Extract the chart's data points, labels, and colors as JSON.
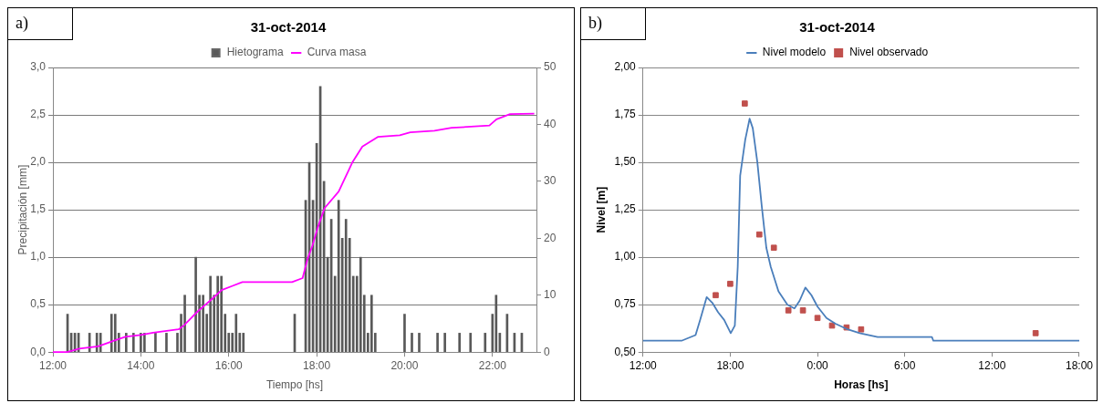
{
  "chart_data": [
    {
      "type": "bar",
      "title": "31-oct-2014",
      "xlabel": "Tiempo [hs]",
      "ylabel": "Precipitación [mm]",
      "annotations": [
        "a)"
      ],
      "legend": "top",
      "grid": "y",
      "xlim": [
        12,
        23
      ],
      "xticks": [
        {
          "value": 12,
          "label": "12:00"
        },
        {
          "value": 14,
          "label": "14:00"
        },
        {
          "value": 16,
          "label": "16:00"
        },
        {
          "value": 18,
          "label": "18:00"
        },
        {
          "value": 20,
          "label": "20:00"
        },
        {
          "value": 22,
          "label": "22:00"
        }
      ],
      "ylim": [
        0,
        3
      ],
      "yticks": [
        {
          "value": 0,
          "label": "0,0"
        },
        {
          "value": 0.5,
          "label": "0,5"
        },
        {
          "value": 1,
          "label": "1,0"
        },
        {
          "value": 1.5,
          "label": "1,5"
        },
        {
          "value": 2,
          "label": "2,0"
        },
        {
          "value": 2.5,
          "label": "2,5"
        },
        {
          "value": 3,
          "label": "3,0"
        }
      ],
      "y2lim": [
        0,
        50
      ],
      "y2ticks": [
        0,
        10,
        20,
        30,
        40,
        50
      ],
      "series": [
        {
          "name": "Hietograma",
          "color": "#595959",
          "x": [
            12.333,
            12.417,
            12.5,
            12.583,
            12.833,
            13.0,
            13.083,
            13.333,
            13.417,
            13.5,
            13.667,
            13.833,
            14.0,
            14.083,
            14.333,
            14.583,
            14.833,
            14.917,
            15.0,
            15.25,
            15.333,
            15.417,
            15.5,
            15.583,
            15.667,
            15.75,
            15.833,
            15.917,
            16.0,
            16.083,
            16.167,
            16.25,
            16.333,
            17.5,
            17.75,
            17.833,
            17.917,
            18.0,
            18.083,
            18.167,
            18.25,
            18.333,
            18.417,
            18.5,
            18.583,
            18.667,
            18.75,
            18.833,
            18.917,
            19.0,
            19.083,
            19.167,
            19.25,
            19.333,
            20.0,
            20.167,
            20.333,
            20.75,
            20.917,
            21.25,
            21.5,
            21.833,
            22.0,
            22.083,
            22.167,
            22.333,
            22.5,
            22.667
          ],
          "values": [
            0.4,
            0.2,
            0.2,
            0.2,
            0.2,
            0.2,
            0.2,
            0.4,
            0.4,
            0.2,
            0.2,
            0.2,
            0.2,
            0.2,
            0.2,
            0.2,
            0.2,
            0.4,
            0.6,
            1.0,
            0.6,
            0.6,
            0.4,
            0.8,
            0.6,
            0.8,
            0.8,
            0.4,
            0.2,
            0.2,
            0.4,
            0.2,
            0.2,
            0.4,
            1.6,
            2.0,
            1.6,
            2.2,
            2.8,
            1.8,
            1.0,
            1.4,
            0.8,
            1.6,
            1.2,
            1.4,
            1.2,
            0.8,
            0.8,
            1.0,
            0.6,
            0.2,
            0.6,
            0.2,
            0.4,
            0.2,
            0.2,
            0.2,
            0.2,
            0.2,
            0.2,
            0.2,
            0.4,
            0.6,
            0.2,
            0.4,
            0.2,
            0.2
          ]
        },
        {
          "name": "Curva masa",
          "type": "line",
          "axis": "y2",
          "color": "#ff00ff",
          "x": [
            12,
            12.33,
            12.6,
            13.03,
            13.42,
            13.65,
            14.0,
            14.28,
            14.86,
            14.98,
            15.3,
            15.6,
            15.84,
            16.31,
            17.44,
            17.68,
            17.79,
            17.9,
            18.03,
            18.18,
            18.5,
            18.81,
            19.04,
            19.39,
            19.89,
            20.13,
            20.68,
            21.07,
            21.93,
            22.09,
            22.4,
            22.95
          ],
          "values": [
            0,
            0,
            0.6,
            1.0,
            2.1,
            2.7,
            3.0,
            3.4,
            4.0,
            4.7,
            7.2,
            9.2,
            10.9,
            12.3,
            12.3,
            13.0,
            16.3,
            18.6,
            22.0,
            25.3,
            28.2,
            33.3,
            36.1,
            37.8,
            38.1,
            38.6,
            38.9,
            39.4,
            39.8,
            40.9,
            41.8,
            41.9
          ]
        }
      ]
    },
    {
      "type": "line",
      "title": "31-oct-2014",
      "xlabel": "Horas [hs]",
      "ylabel": "Nivel [m]",
      "annotations": [
        "b)"
      ],
      "legend": "top",
      "grid": "y",
      "xlim": [
        "2014-10-31T12:00",
        "2014-11-01T18:00"
      ],
      "xticks": [
        {
          "value": "2014-10-31T12:00",
          "label": "12:00"
        },
        {
          "value": "2014-10-31T18:00",
          "label": "18:00"
        },
        {
          "value": "2014-11-01T00:00",
          "label": "0:00"
        },
        {
          "value": "2014-11-01T06:00",
          "label": "6:00"
        },
        {
          "value": "2014-11-01T12:00",
          "label": "12:00"
        },
        {
          "value": "2014-11-01T18:00",
          "label": "18:00"
        }
      ],
      "ylim": [
        0.5,
        2
      ],
      "yticks": [
        {
          "value": 0.5,
          "label": "0,50"
        },
        {
          "value": 0.75,
          "label": "0,75"
        },
        {
          "value": 1,
          "label": "1,00"
        },
        {
          "value": 1.25,
          "label": "1,25"
        },
        {
          "value": 1.5,
          "label": "1,50"
        },
        {
          "value": 1.75,
          "label": "1,75"
        },
        {
          "value": 2,
          "label": "2,00"
        }
      ],
      "series": [
        {
          "name": "Nivel modelo",
          "marker": "none",
          "color": "#4a7ebb",
          "x": [
            "2014-10-31T12:00",
            "2014-10-31T14:39",
            "2014-10-31T15:37",
            "2014-10-31T15:56",
            "2014-10-31T16:23",
            "2014-10-31T16:46",
            "2014-10-31T17:10",
            "2014-10-31T17:35",
            "2014-10-31T18:02",
            "2014-10-31T18:19",
            "2014-10-31T18:31",
            "2014-10-31T18:41",
            "2014-10-31T19:02",
            "2014-10-31T19:20",
            "2014-10-31T19:33",
            "2014-10-31T19:52",
            "2014-10-31T20:10",
            "2014-10-31T20:29",
            "2014-10-31T20:47",
            "2014-10-31T21:19",
            "2014-10-31T21:56",
            "2014-10-31T22:25",
            "2014-10-31T22:46",
            "2014-10-31T23:10",
            "2014-10-31T23:35",
            "2014-11-01T00:00",
            "2014-11-01T00:37",
            "2014-11-01T01:14",
            "2014-11-01T02:04",
            "2014-11-01T02:54",
            "2014-11-01T04:08",
            "2014-11-01T07:52",
            "2014-11-01T07:58",
            "2014-11-01T18:00"
          ],
          "values": [
            0.56,
            0.56,
            0.59,
            0.67,
            0.79,
            0.76,
            0.71,
            0.67,
            0.6,
            0.64,
            0.95,
            1.43,
            1.62,
            1.73,
            1.68,
            1.5,
            1.27,
            1.05,
            0.95,
            0.82,
            0.75,
            0.73,
            0.77,
            0.84,
            0.8,
            0.74,
            0.68,
            0.65,
            0.62,
            0.6,
            0.58,
            0.58,
            0.56,
            0.56
          ]
        },
        {
          "name": "Nivel observado",
          "type": "scatter",
          "marker": "square",
          "color": "#c0504d",
          "x": [
            "2014-10-31T17:00",
            "2014-10-31T18:00",
            "2014-10-31T19:00",
            "2014-10-31T20:00",
            "2014-10-31T21:00",
            "2014-10-31T22:00",
            "2014-10-31T23:00",
            "2014-11-01T00:00",
            "2014-11-01T01:00",
            "2014-11-01T02:00",
            "2014-11-01T03:00",
            "2014-11-01T15:00"
          ],
          "values": [
            0.8,
            0.86,
            1.81,
            1.12,
            1.05,
            0.72,
            0.72,
            0.68,
            0.64,
            0.63,
            0.62,
            0.6
          ]
        }
      ]
    }
  ]
}
